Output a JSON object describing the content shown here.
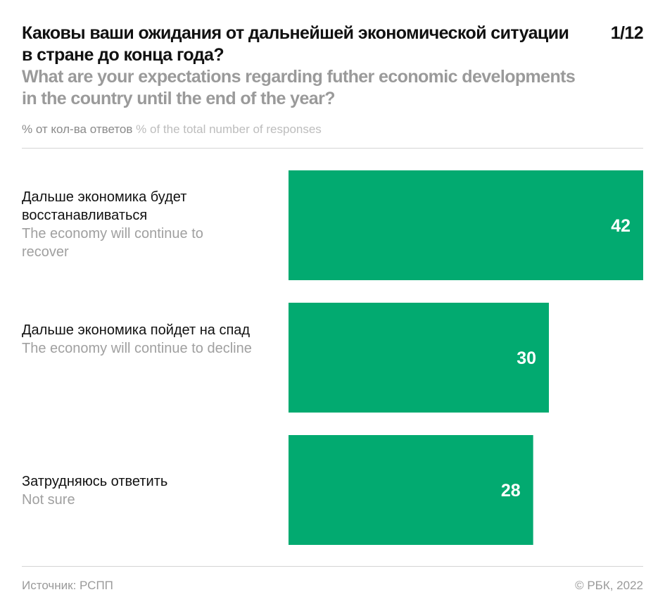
{
  "header": {
    "title_ru": "Каковы ваши ожидания от дальнейшей экономической ситуации в стране до конца года?",
    "title_en": "What are your expectations regarding futher economic developments in the country until the end of the year?",
    "page_indicator": "1/12",
    "units_ru": "% от кол-ва ответов",
    "units_en": "% of the total number of responses"
  },
  "footer": {
    "source": "Источник: РСПП",
    "copyright": "© РБК, 2022"
  },
  "chart_data": {
    "type": "bar",
    "orientation": "horizontal",
    "title": "Каковы ваши ожидания от дальнейшей экономической ситуации в стране до конца года? / What are your expectations regarding futher economic developments in the country until the end of the year?",
    "xlabel": "% of the total number of responses",
    "ylabel": "",
    "categories": [
      {
        "ru": "Дальше экономика будет восстанавливаться",
        "en": "The economy will continue to recover"
      },
      {
        "ru": "Дальше экономика пойдет на спад",
        "en": "The economy will continue to decline"
      },
      {
        "ru": "Затрудняюсь ответить",
        "en": "Not sure"
      }
    ],
    "values": [
      42,
      30,
      28
    ],
    "value_labels": [
      "42",
      "30",
      "28"
    ],
    "xlim": [
      0,
      42
    ],
    "grid": false,
    "legend": "none",
    "bar_color": "#02aa70",
    "label_color": "#ffffff"
  }
}
